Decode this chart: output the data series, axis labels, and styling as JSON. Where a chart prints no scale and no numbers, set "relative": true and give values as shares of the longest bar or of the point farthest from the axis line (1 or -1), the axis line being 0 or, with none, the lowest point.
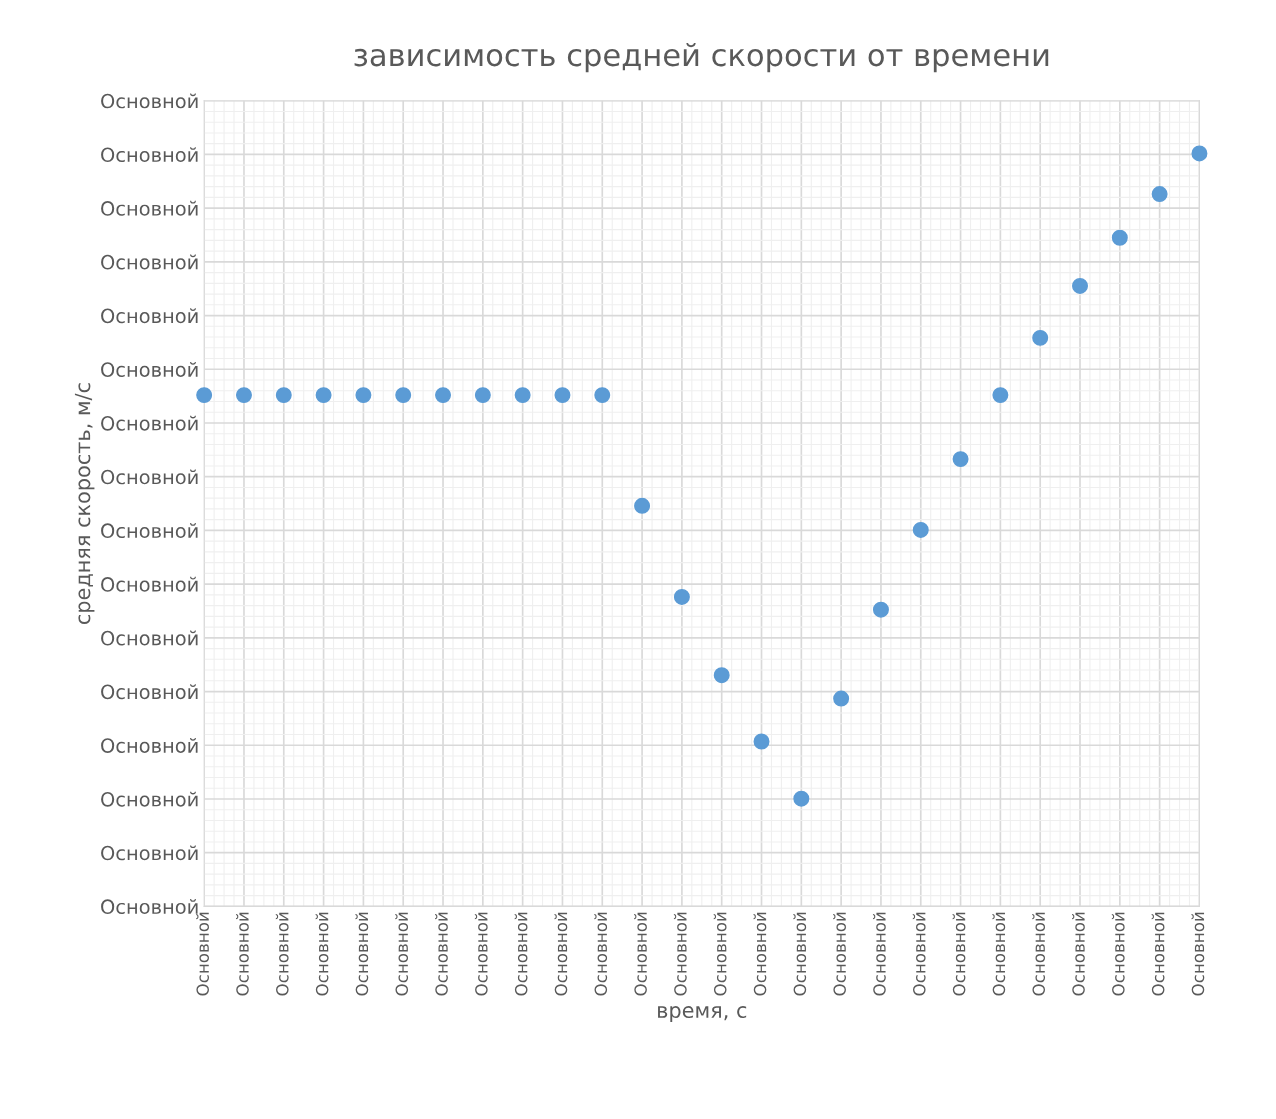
{
  "chart_data": {
    "type": "scatter",
    "title": "зависимость средней скорости от времени",
    "xlabel": "время, с",
    "ylabel": "средняя скорость, м/с",
    "categories": [
      "Основной",
      "Основной",
      "Основной",
      "Основной",
      "Основной",
      "Основной",
      "Основной",
      "Основной",
      "Основной",
      "Основной",
      "Основной",
      "Основной",
      "Основной",
      "Основной",
      "Основной",
      "Основной",
      "Основной",
      "Основной",
      "Основной",
      "Основной",
      "Основной",
      "Основной",
      "Основной",
      "Основной",
      "Основной",
      "Основной"
    ],
    "series": [
      {
        "color": "#5b9bd5",
        "values": [
          0.679,
          0.679,
          0.679,
          0.679,
          0.679,
          0.679,
          0.679,
          0.679,
          0.679,
          0.679,
          0.679,
          0.532,
          0.411,
          0.307,
          0.219,
          0.143,
          0.276,
          0.394,
          0.5,
          0.594,
          0.679,
          0.755,
          0.824,
          0.888,
          0.946,
          1.0
        ]
      }
    ],
    "relative": true,
    "annotations": [
      "Основной",
      "Основной",
      "Основной",
      "Основной",
      "Основной",
      "Основной",
      "Основной",
      "Основной",
      "Основной",
      "Основной",
      "Основной",
      "Основной",
      "Основной",
      "Основной",
      "Основной",
      "Основной"
    ],
    "grid": true,
    "marker": "circle",
    "legend": false
  }
}
